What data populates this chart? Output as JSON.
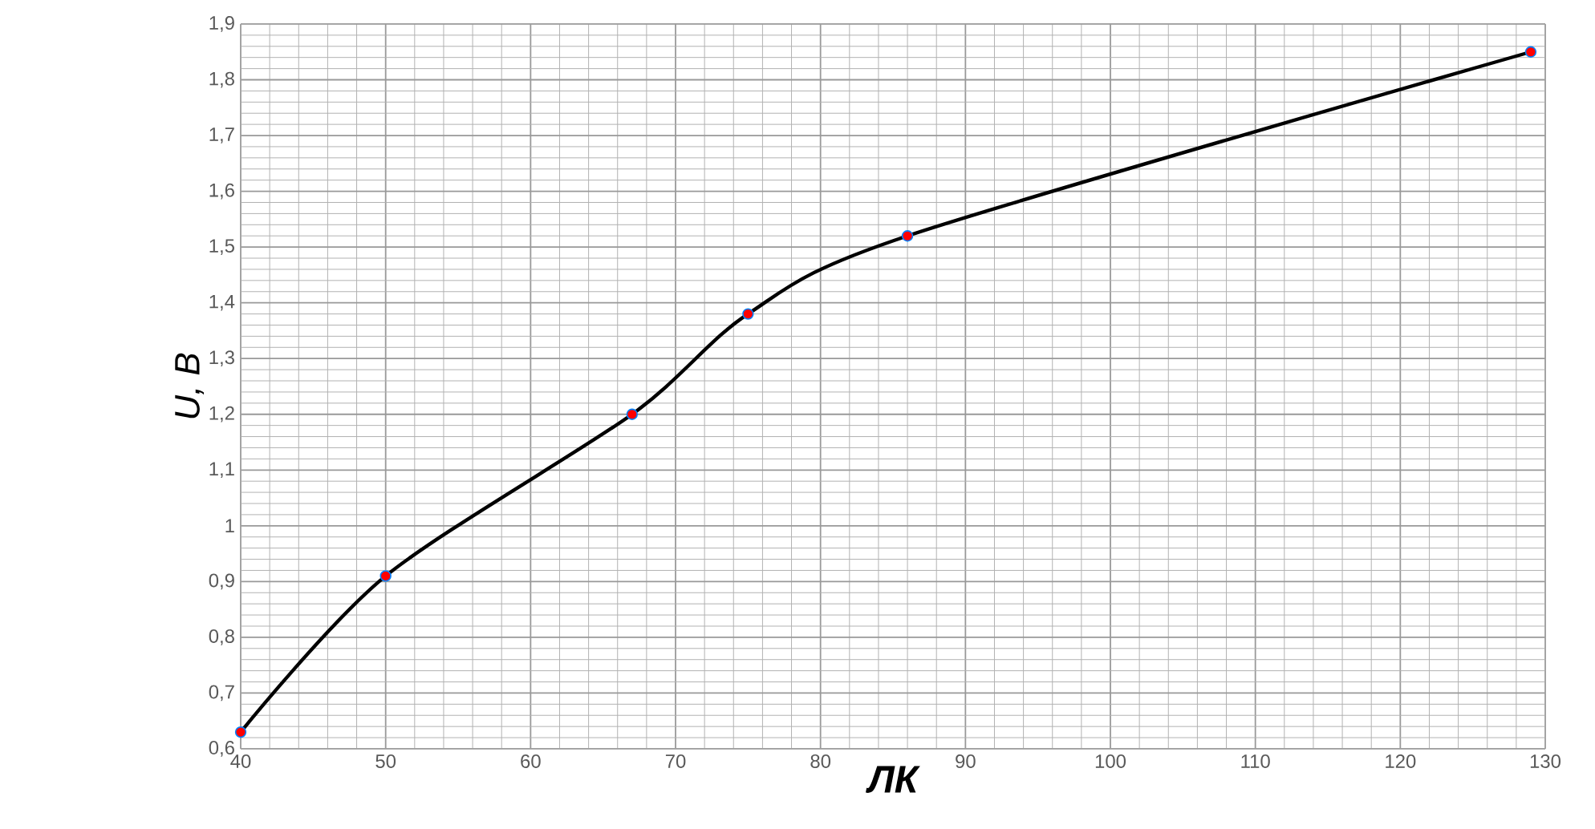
{
  "chart_data": {
    "type": "line",
    "xlabel": "ЛК",
    "ylabel": "U, В",
    "x": [
      40,
      50,
      67,
      75,
      86,
      129
    ],
    "series": [
      {
        "color": "#000000",
        "values": [
          0.63,
          0.91,
          1.2,
          1.38,
          1.52,
          1.85
        ]
      }
    ],
    "marker": "circle",
    "line_style": "solid",
    "grid": true,
    "xlim": [
      40,
      130
    ],
    "xticks": [
      40,
      50,
      60,
      70,
      80,
      90,
      100,
      110,
      120,
      130
    ],
    "ylim": [
      0.6,
      1.9
    ],
    "yticks": [
      {
        "value": 0.6,
        "label": "0,6"
      },
      {
        "value": 0.7,
        "label": "0,7"
      },
      {
        "value": 0.8,
        "label": "0,8"
      },
      {
        "value": 0.9,
        "label": "0,9"
      },
      1,
      {
        "value": 1.1,
        "label": "1,1"
      },
      {
        "value": 1.2,
        "label": "1,2"
      },
      {
        "value": 1.3,
        "label": "1,3"
      },
      {
        "value": 1.4,
        "label": "1,4"
      },
      {
        "value": 1.5,
        "label": "1,5"
      },
      {
        "value": 1.6,
        "label": "1,6"
      },
      {
        "value": 1.7,
        "label": "1,7"
      },
      {
        "value": 1.8,
        "label": "1,8"
      },
      {
        "value": 1.9,
        "label": "1,9"
      }
    ]
  }
}
